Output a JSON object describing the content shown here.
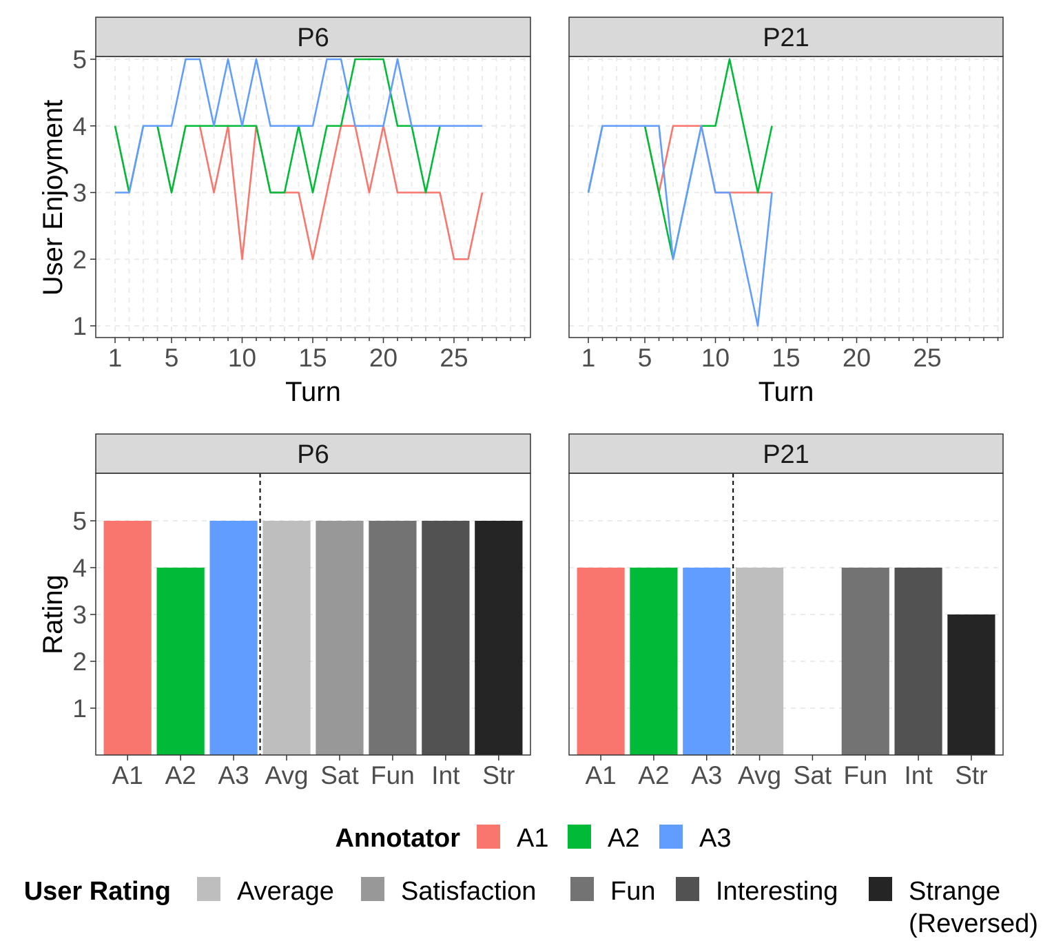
{
  "chart_data": [
    {
      "type": "line",
      "panel": "P6",
      "xlabel": "Turn",
      "ylabel": "User Enjoyment",
      "xlim": [
        1,
        30
      ],
      "ylim": [
        1,
        5
      ],
      "xticks": [
        1,
        5,
        10,
        15,
        20,
        25
      ],
      "yticks": [
        1,
        2,
        3,
        4,
        5
      ],
      "x": [
        1,
        2,
        3,
        4,
        5,
        6,
        7,
        8,
        9,
        10,
        11,
        12,
        13,
        14,
        15,
        16,
        17,
        18,
        19,
        20,
        21,
        22,
        23,
        24,
        25,
        26,
        27
      ],
      "series": [
        {
          "name": "A1",
          "color": "#F8766D",
          "values": [
            4,
            3,
            4,
            4,
            3,
            4,
            4,
            3,
            4,
            2,
            4,
            3,
            3,
            3,
            2,
            3,
            4,
            4,
            3,
            4,
            3,
            3,
            3,
            3,
            2,
            2,
            3
          ]
        },
        {
          "name": "A2",
          "color": "#00BA38",
          "values": [
            4,
            3,
            4,
            4,
            3,
            4,
            4,
            4,
            4,
            4,
            4,
            3,
            3,
            4,
            3,
            4,
            4,
            5,
            5,
            5,
            4,
            4,
            3,
            4,
            4,
            4,
            4
          ]
        },
        {
          "name": "A3",
          "color": "#619CFF",
          "values": [
            3,
            3,
            4,
            4,
            4,
            5,
            5,
            4,
            5,
            4,
            5,
            4,
            4,
            4,
            4,
            5,
            5,
            4,
            4,
            4,
            5,
            4,
            4,
            4,
            4,
            4,
            4
          ]
        }
      ],
      "grid": "dashed vertical lines at every turn and dashed horizontal lines at each rating"
    },
    {
      "type": "line",
      "panel": "P21",
      "xlabel": "Turn",
      "xlim": [
        1,
        30
      ],
      "ylim": [
        1,
        5
      ],
      "xticks": [
        1,
        5,
        10,
        15,
        20,
        25
      ],
      "x": [
        1,
        2,
        3,
        4,
        5,
        6,
        7,
        8,
        9,
        10,
        11,
        12,
        13,
        14
      ],
      "series": [
        {
          "name": "A1",
          "color": "#F8766D",
          "values": [
            3,
            4,
            4,
            4,
            4,
            3,
            4,
            4,
            4,
            3,
            3,
            3,
            3,
            3
          ]
        },
        {
          "name": "A2",
          "color": "#00BA38",
          "values": [
            3,
            4,
            4,
            4,
            4,
            3,
            2,
            3,
            4,
            4,
            5,
            4,
            3,
            4
          ]
        },
        {
          "name": "A3",
          "color": "#619CFF",
          "values": [
            3,
            4,
            4,
            4,
            4,
            4,
            2,
            3,
            4,
            3,
            3,
            2,
            1,
            3
          ]
        }
      ]
    },
    {
      "type": "bar",
      "panel": "P6",
      "ylabel": "Rating",
      "ylim": [
        0,
        6
      ],
      "yticks": [
        1,
        2,
        3,
        4,
        5
      ],
      "categories": [
        "A1",
        "A2",
        "A3",
        "Avg",
        "Sat",
        "Fun",
        "Int",
        "Str"
      ],
      "values": [
        5,
        4,
        5,
        5,
        5,
        5,
        5,
        5
      ],
      "colors": [
        "#F8766D",
        "#00BA38",
        "#619CFF",
        "#BEBEBE",
        "#989898",
        "#737373",
        "#525252",
        "#252525"
      ],
      "divider_after": "A3"
    },
    {
      "type": "bar",
      "panel": "P21",
      "ylim": [
        0,
        6
      ],
      "categories": [
        "A1",
        "A2",
        "A3",
        "Avg",
        "Sat",
        "Fun",
        "Int",
        "Str"
      ],
      "values": [
        4,
        4,
        4,
        4,
        null,
        4,
        4,
        3
      ],
      "colors": [
        "#F8766D",
        "#00BA38",
        "#619CFF",
        "#BEBEBE",
        "#989898",
        "#737373",
        "#525252",
        "#252525"
      ],
      "divider_after": "A3"
    }
  ],
  "legend": {
    "annotator": {
      "title": "Annotator",
      "items": [
        {
          "label": "A1",
          "color": "#F8766D"
        },
        {
          "label": "A2",
          "color": "#00BA38"
        },
        {
          "label": "A3",
          "color": "#619CFF"
        }
      ]
    },
    "user_rating": {
      "title": "User Rating",
      "items": [
        {
          "label": "Average",
          "color": "#BEBEBE"
        },
        {
          "label": "Satisfaction",
          "color": "#989898"
        },
        {
          "label": "Fun",
          "color": "#737373"
        },
        {
          "label": "Interesting",
          "color": "#525252"
        },
        {
          "label": "Strange",
          "label2": "(Reversed)",
          "color": "#252525"
        }
      ]
    }
  }
}
